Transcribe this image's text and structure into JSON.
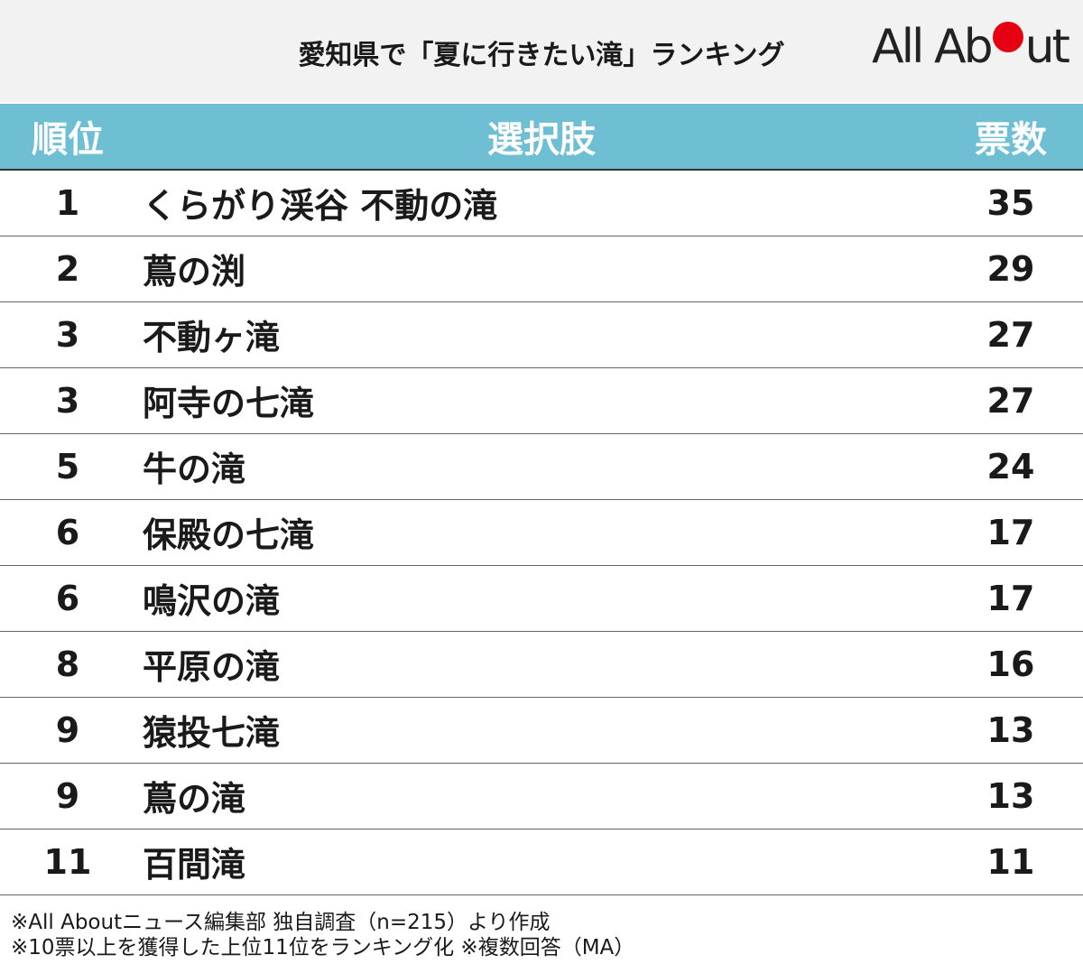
{
  "header": {
    "title": "愛知県で「夏に行きたい滝」ランキング",
    "logo": "All About"
  },
  "table": {
    "columns": [
      "順位",
      "選択肢",
      "票数"
    ],
    "rows": [
      [
        1,
        "くらがり渓谷 不動の滝",
        35
      ],
      [
        2,
        "蔦の渕",
        29
      ],
      [
        3,
        "不動ヶ滝",
        27
      ],
      [
        3,
        "阿寺の七滝",
        27
      ],
      [
        5,
        "牛の滝",
        24
      ],
      [
        6,
        "保殿の七滝",
        17
      ],
      [
        6,
        "鳴沢の滝",
        17
      ],
      [
        8,
        "平原の滝",
        16
      ],
      [
        9,
        "猿投七滝",
        13
      ],
      [
        9,
        "蔦の滝",
        13
      ],
      [
        11,
        "百間滝",
        11
      ]
    ]
  },
  "footnotes": [
    "※All Aboutニュース編集部 独自調査（n=215）より作成",
    "※10票以上を獲得した上位11位をランキング化 ※複数回答（MA）"
  ]
}
